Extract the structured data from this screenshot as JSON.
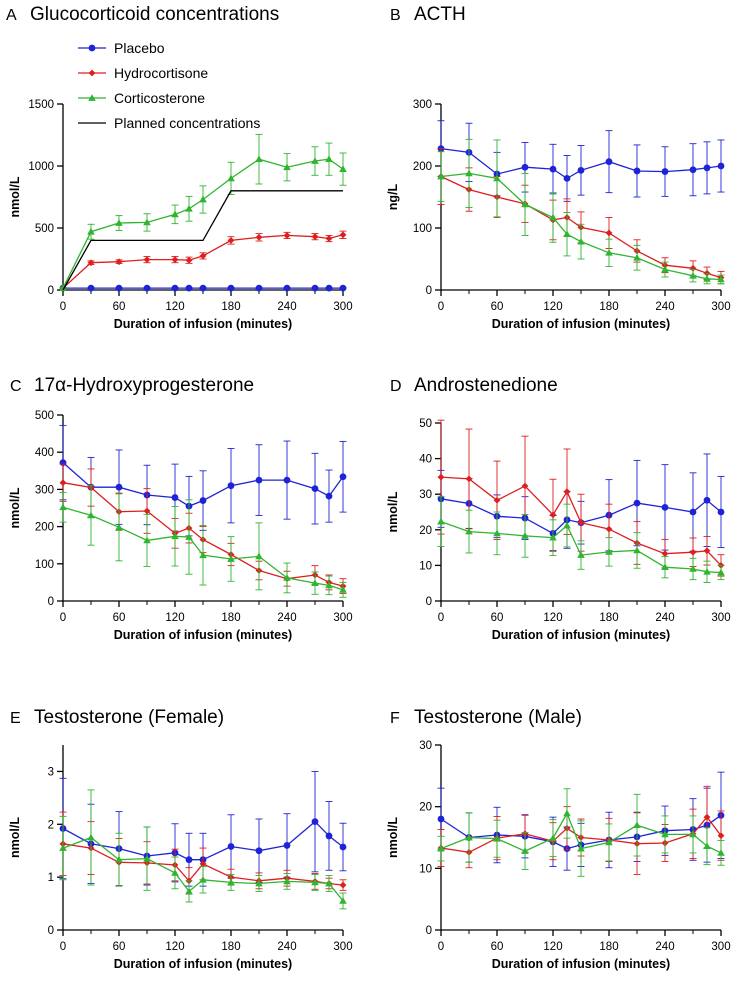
{
  "figure": {
    "legend": [
      {
        "name": "Placebo",
        "color": "#1f23d6",
        "marker": "circle"
      },
      {
        "name": "Hydrocortisone",
        "color": "#dd1f1f",
        "marker": "diamond"
      },
      {
        "name": "Corticosterone",
        "color": "#2fb52f",
        "marker": "triangle"
      },
      {
        "name": "Planned concentrations",
        "color": "#000000",
        "marker": "none"
      }
    ]
  },
  "chart_data": [
    {
      "id": "A",
      "letter": "A",
      "type": "line",
      "title": "Glucocorticoid concentrations",
      "xlabel": "Duration of infusion (minutes)",
      "ylabel": "nmol/L",
      "xlim": [
        0,
        300
      ],
      "xticks": [
        "0",
        "60",
        "120",
        "180",
        "240",
        "300"
      ],
      "ylim": [
        0,
        1500
      ],
      "yticks": [
        "0",
        "500",
        "1000",
        "1500"
      ],
      "series": [
        {
          "name": "Placebo",
          "x": [
            0,
            30,
            60,
            90,
            120,
            135,
            150,
            180,
            210,
            240,
            270,
            285,
            300
          ],
          "y": [
            15,
            15,
            15,
            15,
            15,
            15,
            15,
            15,
            15,
            15,
            15,
            15,
            15
          ],
          "err": [
            4,
            4,
            4,
            4,
            4,
            4,
            4,
            4,
            4,
            4,
            4,
            4,
            4
          ]
        },
        {
          "name": "Hydrocortisone",
          "x": [
            0,
            30,
            60,
            90,
            120,
            135,
            150,
            180,
            210,
            240,
            270,
            285,
            300
          ],
          "y": [
            15,
            220,
            228,
            245,
            245,
            240,
            275,
            400,
            425,
            440,
            430,
            415,
            445
          ],
          "err": [
            5,
            15,
            15,
            25,
            25,
            25,
            25,
            30,
            30,
            25,
            25,
            25,
            30
          ]
        },
        {
          "name": "Corticosterone",
          "x": [
            0,
            30,
            60,
            90,
            120,
            135,
            150,
            180,
            210,
            240,
            270,
            285,
            300
          ],
          "y": [
            15,
            470,
            540,
            545,
            610,
            655,
            730,
            900,
            1055,
            990,
            1040,
            1055,
            975
          ],
          "err": [
            5,
            60,
            60,
            70,
            75,
            100,
            110,
            130,
            200,
            110,
            115,
            130,
            130
          ]
        },
        {
          "name": "Planned concentrations",
          "x": [
            0,
            30,
            150,
            180,
            300
          ],
          "y": [
            0,
            400,
            400,
            800,
            800
          ],
          "err": []
        }
      ]
    },
    {
      "id": "B",
      "letter": "B",
      "type": "line",
      "title": "ACTH",
      "xlabel": "Duration of infusion (minutes)",
      "ylabel": "ng/L",
      "xlim": [
        0,
        300
      ],
      "xticks": [
        "0",
        "60",
        "120",
        "180",
        "240",
        "300"
      ],
      "ylim": [
        0,
        300
      ],
      "yticks": [
        "0",
        "100",
        "200",
        "300"
      ],
      "series": [
        {
          "name": "Placebo",
          "x": [
            0,
            30,
            60,
            90,
            120,
            135,
            150,
            180,
            210,
            240,
            270,
            285,
            300
          ],
          "y": [
            228,
            222,
            187,
            198,
            195,
            180,
            193,
            207,
            192,
            191,
            194,
            197,
            200
          ],
          "err": [
            45,
            47,
            35,
            40,
            40,
            37,
            40,
            50,
            42,
            40,
            42,
            42,
            42
          ]
        },
        {
          "name": "Hydrocortisone",
          "x": [
            0,
            30,
            60,
            90,
            120,
            135,
            150,
            180,
            210,
            240,
            270,
            285,
            300
          ],
          "y": [
            183,
            162,
            150,
            139,
            113,
            117,
            101,
            92,
            63,
            40,
            35,
            27,
            20
          ],
          "err": [
            45,
            35,
            33,
            30,
            32,
            30,
            25,
            25,
            18,
            12,
            12,
            10,
            10
          ]
        },
        {
          "name": "Corticosterone",
          "x": [
            0,
            30,
            60,
            90,
            120,
            135,
            150,
            180,
            210,
            240,
            270,
            285,
            300
          ],
          "y": [
            183,
            188,
            180,
            138,
            117,
            90,
            78,
            60,
            52,
            33,
            23,
            18,
            17
          ],
          "err": [
            40,
            55,
            62,
            50,
            40,
            35,
            28,
            22,
            20,
            12,
            10,
            8,
            7
          ]
        }
      ]
    },
    {
      "id": "C",
      "letter": "C",
      "type": "line",
      "title": "17α-Hydroxyprogesterone",
      "xlabel": "Duration of infusion (minutes)",
      "ylabel": "nmol/L",
      "xlim": [
        0,
        300
      ],
      "xticks": [
        "0",
        "60",
        "120",
        "180",
        "240",
        "300"
      ],
      "ylim": [
        0,
        500
      ],
      "yticks": [
        "0",
        "100",
        "200",
        "300",
        "400",
        "500"
      ],
      "series": [
        {
          "name": "Placebo",
          "x": [
            0,
            30,
            60,
            90,
            120,
            135,
            150,
            180,
            210,
            240,
            270,
            285,
            300
          ],
          "y": [
            372,
            306,
            306,
            285,
            278,
            255,
            270,
            310,
            325,
            325,
            302,
            282,
            334
          ],
          "err": [
            100,
            80,
            100,
            80,
            90,
            80,
            80,
            100,
            95,
            105,
            95,
            70,
            95
          ]
        },
        {
          "name": "Hydrocortisone",
          "x": [
            0,
            30,
            60,
            90,
            120,
            135,
            150,
            180,
            210,
            240,
            270,
            285,
            300
          ],
          "y": [
            318,
            305,
            240,
            242,
            182,
            196,
            165,
            125,
            82,
            60,
            70,
            50,
            40
          ],
          "err": [
            50,
            50,
            50,
            60,
            40,
            40,
            35,
            30,
            25,
            20,
            25,
            20,
            20
          ]
        },
        {
          "name": "Corticosterone",
          "x": [
            0,
            30,
            60,
            90,
            120,
            135,
            150,
            180,
            210,
            240,
            270,
            285,
            300
          ],
          "y": [
            252,
            230,
            198,
            163,
            174,
            172,
            123,
            113,
            120,
            62,
            48,
            42,
            30
          ],
          "err": [
            40,
            80,
            90,
            70,
            80,
            100,
            80,
            60,
            90,
            40,
            30,
            25,
            20
          ]
        }
      ]
    },
    {
      "id": "D",
      "letter": "D",
      "type": "line",
      "title": "Androstenedione",
      "xlabel": "Duration of infusion (minutes)",
      "ylabel": "nmol/L",
      "xlim": [
        0,
        300
      ],
      "xticks": [
        "0",
        "60",
        "120",
        "180",
        "240",
        "300"
      ],
      "ylim": [
        0,
        50
      ],
      "yticks": [
        "0",
        "10",
        "20",
        "30",
        "40",
        "50"
      ],
      "series": [
        {
          "name": "Placebo",
          "x": [
            0,
            30,
            60,
            90,
            120,
            135,
            150,
            180,
            210,
            240,
            270,
            285,
            300
          ],
          "y": [
            28.7,
            27.4,
            23.8,
            23.3,
            19.0,
            22.8,
            22.0,
            24.1,
            27.5,
            26.3,
            25.0,
            28.3,
            25.0
          ],
          "err": [
            8,
            7,
            6,
            6,
            5,
            8,
            6,
            10,
            12,
            12,
            11,
            13,
            10
          ]
        },
        {
          "name": "Hydrocortisone",
          "x": [
            0,
            30,
            60,
            90,
            120,
            135,
            150,
            180,
            210,
            240,
            270,
            285,
            300
          ],
          "y": [
            34.8,
            34.3,
            28.3,
            32.3,
            24.2,
            30.7,
            22.0,
            20.2,
            16.3,
            13.3,
            13.7,
            14.1,
            10.0
          ],
          "err": [
            16,
            14,
            11,
            14,
            10,
            12,
            8,
            7,
            6,
            4,
            4,
            4,
            3
          ]
        },
        {
          "name": "Corticosterone",
          "x": [
            0,
            30,
            60,
            90,
            120,
            135,
            150,
            180,
            210,
            240,
            270,
            285,
            300
          ],
          "y": [
            22.3,
            19.5,
            19.0,
            18.3,
            17.8,
            21.2,
            12.9,
            13.8,
            14.2,
            9.5,
            9.0,
            8.2,
            8.0
          ],
          "err": [
            7,
            6,
            6,
            6,
            5,
            6,
            4,
            4,
            5,
            3,
            3,
            3,
            2
          ]
        }
      ]
    },
    {
      "id": "E",
      "letter": "E",
      "type": "line",
      "title": "Testosterone (Female)",
      "xlabel": "Duration of infusion (minutes)",
      "ylabel": "nmol/L",
      "xlim": [
        0,
        300
      ],
      "xticks": [
        "0",
        "60",
        "120",
        "180",
        "240",
        "300"
      ],
      "ylim": [
        0,
        3.5
      ],
      "yticks": [
        "0",
        "1",
        "2",
        "3"
      ],
      "series": [
        {
          "name": "Placebo",
          "x": [
            0,
            30,
            60,
            90,
            120,
            135,
            150,
            180,
            210,
            240,
            270,
            285,
            300
          ],
          "y": [
            1.92,
            1.63,
            1.54,
            1.4,
            1.46,
            1.33,
            1.33,
            1.58,
            1.5,
            1.6,
            2.05,
            1.78,
            1.57
          ],
          "err": [
            0.95,
            0.75,
            0.7,
            0.55,
            0.55,
            0.5,
            0.5,
            0.6,
            0.6,
            0.6,
            0.95,
            0.65,
            0.45
          ]
        },
        {
          "name": "Hydrocortisone",
          "x": [
            0,
            30,
            60,
            90,
            120,
            135,
            150,
            180,
            210,
            240,
            270,
            285,
            300
          ],
          "y": [
            1.63,
            1.55,
            1.28,
            1.27,
            1.23,
            0.93,
            1.25,
            1.0,
            0.93,
            0.98,
            0.92,
            0.88,
            0.85
          ],
          "err": [
            0.6,
            0.5,
            0.45,
            0.4,
            0.3,
            0.25,
            0.3,
            0.15,
            0.15,
            0.15,
            0.15,
            0.1,
            0.1
          ]
        },
        {
          "name": "Corticosterone",
          "x": [
            0,
            30,
            60,
            90,
            120,
            135,
            150,
            180,
            210,
            240,
            270,
            285,
            300
          ],
          "y": [
            1.55,
            1.75,
            1.33,
            1.35,
            1.08,
            0.73,
            0.95,
            0.9,
            0.88,
            0.92,
            0.9,
            0.88,
            0.55
          ],
          "err": [
            0.6,
            0.9,
            0.5,
            0.6,
            0.3,
            0.2,
            0.25,
            0.15,
            0.15,
            0.15,
            0.15,
            0.15,
            0.15
          ]
        }
      ]
    },
    {
      "id": "F",
      "letter": "F",
      "type": "line",
      "title": "Testosterone (Male)",
      "xlabel": "Duration of infusion (minutes)",
      "ylabel": "nmol/L",
      "xlim": [
        0,
        300
      ],
      "xticks": [
        "0",
        "60",
        "120",
        "180",
        "240",
        "300"
      ],
      "ylim": [
        0,
        30
      ],
      "yticks": [
        "0",
        "10",
        "20",
        "30"
      ],
      "series": [
        {
          "name": "Placebo",
          "x": [
            0,
            30,
            60,
            90,
            120,
            135,
            150,
            180,
            210,
            240,
            270,
            285,
            300
          ],
          "y": [
            18.0,
            15.0,
            15.4,
            15.2,
            14.3,
            13.2,
            13.8,
            14.6,
            15.1,
            16.1,
            16.3,
            17.0,
            18.6
          ],
          "err": [
            5,
            4,
            4.5,
            3.5,
            4,
            3.5,
            3.5,
            4.5,
            4,
            4,
            5,
            6,
            7
          ]
        },
        {
          "name": "Hydrocortisone",
          "x": [
            0,
            30,
            60,
            90,
            120,
            135,
            150,
            180,
            210,
            240,
            270,
            285,
            300
          ],
          "y": [
            13.3,
            12.6,
            14.9,
            15.6,
            14.4,
            16.5,
            15.0,
            14.6,
            14.0,
            14.1,
            15.6,
            18.3,
            15.3
          ],
          "err": [
            3,
            2.5,
            3.5,
            3,
            3,
            3.5,
            3,
            3.5,
            5,
            3,
            4,
            5,
            4
          ]
        },
        {
          "name": "Corticosterone",
          "x": [
            0,
            30,
            60,
            90,
            120,
            135,
            150,
            180,
            210,
            240,
            270,
            285,
            300
          ],
          "y": [
            13.2,
            15.0,
            14.8,
            12.8,
            14.9,
            18.9,
            13.2,
            14.2,
            17.0,
            15.5,
            15.5,
            13.6,
            12.5
          ],
          "err": [
            2,
            4,
            3,
            3,
            3,
            4,
            4.5,
            3,
            5,
            3,
            3,
            3,
            2
          ]
        }
      ]
    }
  ]
}
